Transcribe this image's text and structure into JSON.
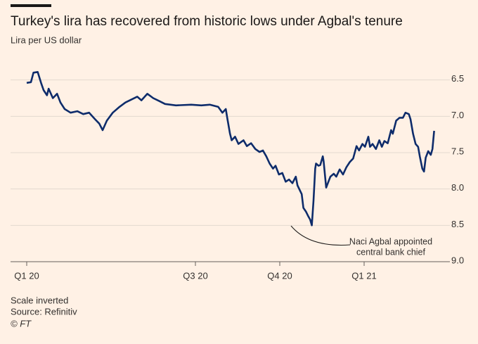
{
  "chart_data": {
    "type": "line",
    "title": "Turkey's lira has recovered from historic lows under Agbal's tenure",
    "subtitle": "Lira per US dollar",
    "notes": [
      "Scale inverted",
      "Source: Refinitiv",
      "© FT"
    ],
    "annotation": [
      "Naci Agbal appointed",
      "central bank chief"
    ],
    "y_inverted": true,
    "grid": true,
    "xlim": [
      -0.15,
      4.95
    ],
    "xticks": [
      {
        "value": 0,
        "label": "Q1 20"
      },
      {
        "value": 2,
        "label": "Q3 20"
      },
      {
        "value": 3,
        "label": "Q4 20"
      },
      {
        "value": 4,
        "label": "Q1 21"
      }
    ],
    "ylim": [
      6.3,
      9.0
    ],
    "yticks": [
      6.5,
      {
        "value": 7,
        "label": "7.0"
      },
      7.5,
      {
        "value": 8,
        "label": "8.0"
      },
      8.5,
      {
        "value": 9,
        "label": "9.0"
      }
    ],
    "series": [
      {
        "color": "#0e2c6b",
        "x": [
          0.0,
          0.05,
          0.08,
          0.13,
          0.17,
          0.2,
          0.24,
          0.26,
          0.31,
          0.36,
          0.4,
          0.45,
          0.52,
          0.6,
          0.67,
          0.74,
          0.81,
          0.86,
          0.9,
          0.95,
          1.02,
          1.1,
          1.17,
          1.24,
          1.31,
          1.36,
          1.43,
          1.5,
          1.57,
          1.64,
          1.77,
          1.95,
          2.07,
          2.17,
          2.27,
          2.32,
          2.36,
          2.38,
          2.41,
          2.43,
          2.47,
          2.51,
          2.57,
          2.61,
          2.66,
          2.71,
          2.76,
          2.8,
          2.84,
          2.88,
          2.92,
          2.95,
          2.99,
          3.03,
          3.07,
          3.11,
          3.15,
          3.19,
          3.21,
          3.26,
          3.28,
          3.31,
          3.34,
          3.36,
          3.38,
          3.4,
          3.42,
          3.43,
          3.46,
          3.48,
          3.51,
          3.52,
          3.55,
          3.58,
          3.6,
          3.64,
          3.67,
          3.71,
          3.75,
          3.79,
          3.83,
          3.87,
          3.91,
          3.94,
          3.98,
          4.01,
          4.05,
          4.07,
          4.1,
          4.14,
          4.18,
          4.21,
          4.24,
          4.28,
          4.32,
          4.34,
          4.38,
          4.42,
          4.46,
          4.49,
          4.53,
          4.55,
          4.58,
          4.61,
          4.64,
          4.66,
          4.69,
          4.71,
          4.73,
          4.76,
          4.79,
          4.81,
          4.83
        ],
        "values": [
          6.54,
          6.53,
          6.4,
          6.39,
          6.54,
          6.64,
          6.71,
          6.62,
          6.75,
          6.69,
          6.81,
          6.9,
          6.95,
          6.93,
          6.97,
          6.95,
          7.04,
          7.1,
          7.19,
          7.06,
          6.95,
          6.87,
          6.81,
          6.77,
          6.73,
          6.78,
          6.69,
          6.75,
          6.79,
          6.83,
          6.85,
          6.84,
          6.85,
          6.84,
          6.87,
          6.95,
          6.9,
          7.04,
          7.24,
          7.33,
          7.28,
          7.38,
          7.33,
          7.41,
          7.37,
          7.45,
          7.49,
          7.47,
          7.55,
          7.65,
          7.72,
          7.68,
          7.8,
          7.78,
          7.9,
          7.87,
          7.92,
          7.83,
          7.95,
          8.07,
          8.26,
          8.31,
          8.38,
          8.42,
          8.5,
          8.16,
          7.72,
          7.65,
          7.68,
          7.67,
          7.55,
          7.62,
          7.98,
          7.89,
          7.83,
          7.79,
          7.83,
          7.73,
          7.8,
          7.7,
          7.63,
          7.58,
          7.41,
          7.47,
          7.38,
          7.42,
          7.28,
          7.42,
          7.38,
          7.45,
          7.33,
          7.42,
          7.34,
          7.37,
          7.19,
          7.24,
          7.06,
          7.02,
          7.02,
          6.95,
          6.97,
          7.04,
          7.24,
          7.38,
          7.42,
          7.55,
          7.72,
          7.76,
          7.57,
          7.48,
          7.53,
          7.45,
          7.2
        ]
      }
    ]
  }
}
